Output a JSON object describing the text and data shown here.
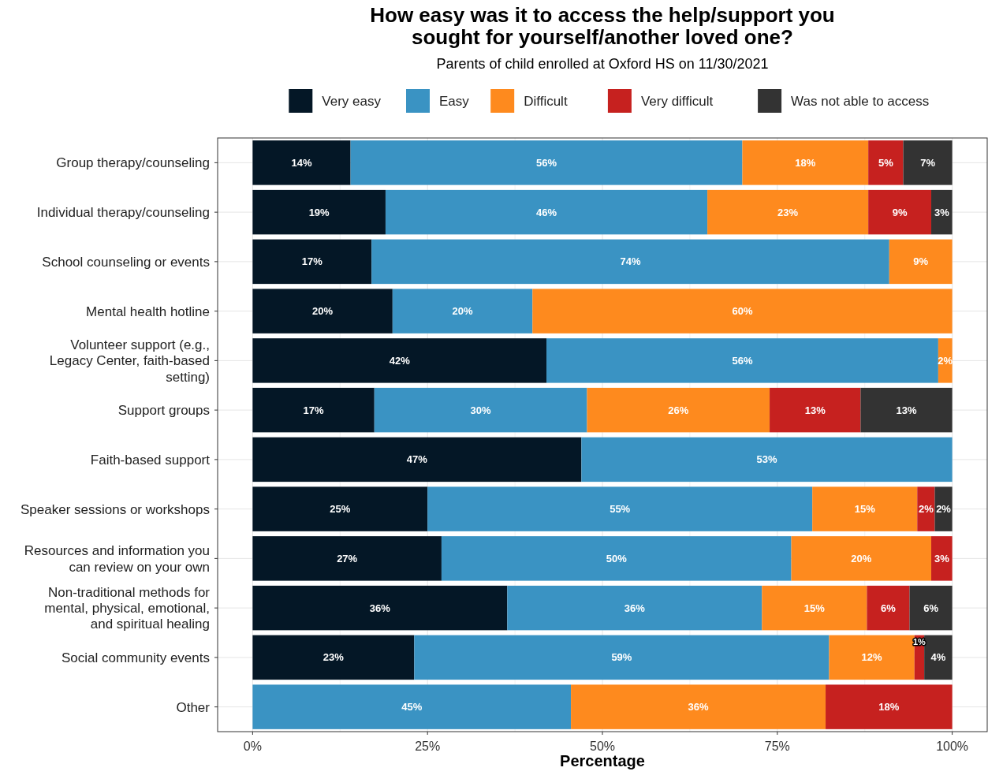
{
  "chart_data": {
    "type": "bar",
    "orientation": "horizontal",
    "stacked": true,
    "title": "How easy was it to access the help/support you\nsought for yourself/another loved one?",
    "subtitle": "Parents of child enrolled at Oxford HS on 11/30/2021",
    "xlabel": "Percentage",
    "categories": [
      "Group therapy/counseling",
      "Individual therapy/counseling",
      "School counseling or events",
      "Mental health hotline",
      "Volunteer support (e.g.,\nLegacy Center, faith-based\nsetting)",
      "Support groups",
      "Faith-based support",
      "Speaker sessions or workshops",
      "Resources and information you\ncan review on your own",
      "Non-traditional methods for\nmental, physical, emotional,\nand spiritual healing",
      "Social community events",
      "Other"
    ],
    "series": [
      {
        "name": "Very easy",
        "color": "#041726",
        "values": [
          14,
          19,
          17,
          20,
          42,
          17.4,
          47,
          25,
          27,
          36.4,
          23.1,
          null
        ],
        "value_labels": [
          "14%",
          "19%",
          "17%",
          "20%",
          "42%",
          "17%",
          "47%",
          "25%",
          "27%",
          "36%",
          "23%",
          null
        ]
      },
      {
        "name": "Easy",
        "color": "#3a93c3",
        "values": [
          56,
          46,
          74,
          20,
          56,
          30.4,
          53,
          55,
          50,
          36.4,
          59.3,
          45.5
        ],
        "value_labels": [
          "56%",
          "46%",
          "74%",
          "20%",
          "56%",
          "30%",
          "53%",
          "55%",
          "50%",
          "36%",
          "59%",
          "45%"
        ]
      },
      {
        "name": "Difficult",
        "color": "#fe8a1e",
        "values": [
          18,
          23,
          9,
          60,
          2,
          26.1,
          null,
          15,
          20,
          15,
          12.2,
          36.4
        ],
        "value_labels": [
          "18%",
          "23%",
          "9%",
          "60%",
          "2%",
          "26%",
          null,
          "15%",
          "20%",
          "15%",
          "12%",
          "36%"
        ]
      },
      {
        "name": "Very difficult",
        "color": "#c6211f",
        "values": [
          5,
          9,
          null,
          null,
          null,
          13,
          null,
          2.5,
          3,
          6.1,
          1.4,
          18.1
        ],
        "value_labels": [
          "5%",
          "9%",
          null,
          null,
          null,
          "13%",
          null,
          "2%",
          "3%",
          "6%",
          "1%",
          "18%"
        ]
      },
      {
        "name": "Was not able to access",
        "color": "#333333",
        "values": [
          7,
          3,
          null,
          null,
          null,
          13.1,
          null,
          2.5,
          null,
          6.1,
          4,
          null
        ],
        "value_labels": [
          "7%",
          "3%",
          null,
          null,
          null,
          "13%",
          null,
          "2%",
          null,
          "6%",
          "4%",
          null
        ]
      }
    ],
    "xlim": [
      -5,
      105
    ],
    "xticks": [
      {
        "value": 0,
        "label": "0%"
      },
      {
        "value": 25,
        "label": "25%"
      },
      {
        "value": 50,
        "label": "50%"
      },
      {
        "value": 75,
        "label": "75%"
      },
      {
        "value": 100,
        "label": "100%"
      }
    ],
    "grid": true,
    "legend": "top"
  }
}
